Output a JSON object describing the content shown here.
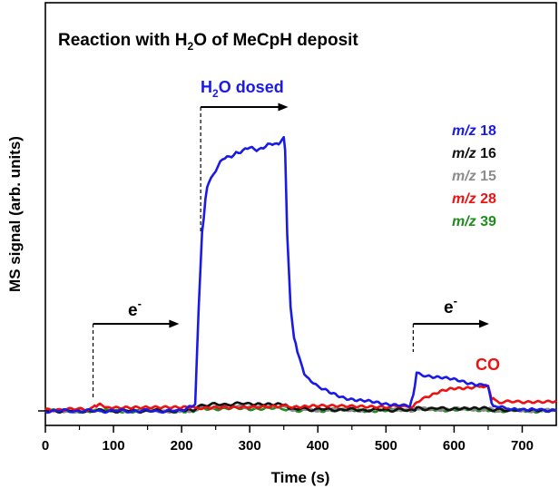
{
  "chart_data": {
    "type": "line",
    "title": "Reaction with H2O of MeCpH deposit",
    "xlabel": "Time (s)",
    "ylabel": "MS signal (arb. units)",
    "xlim": [
      0,
      750
    ],
    "ylim": [
      0,
      100
    ],
    "xticks": [
      0,
      100,
      200,
      300,
      400,
      500,
      600,
      700
    ],
    "grid": false,
    "legend_position": "right",
    "series": [
      {
        "name": "m/z 18",
        "prefix": "m/z",
        "num": "18",
        "color": "#1a1ae6",
        "x": [
          0,
          100,
          200,
          220,
          225,
          230,
          235,
          240,
          250,
          260,
          270,
          280,
          290,
          300,
          310,
          320,
          330,
          340,
          345,
          350,
          352,
          355,
          360,
          365,
          370,
          380,
          390,
          400,
          420,
          440,
          460,
          480,
          500,
          520,
          535,
          540,
          545,
          560,
          580,
          600,
          620,
          640,
          650,
          655,
          660,
          670,
          680,
          700,
          720,
          750
        ],
        "y": [
          0,
          0,
          0,
          2,
          35,
          60,
          72,
          78,
          82,
          85,
          86,
          88,
          88,
          89,
          89,
          89.5,
          90,
          90.5,
          91,
          93,
          88,
          60,
          35,
          25,
          20,
          13,
          10,
          8,
          6,
          4.5,
          3.5,
          3,
          2.5,
          2,
          2,
          5,
          13,
          12,
          11.5,
          10.5,
          9.5,
          9,
          8.5,
          2.5,
          1.5,
          1,
          0.8,
          0.6,
          0.4,
          0.3
        ]
      },
      {
        "name": "m/z 16",
        "prefix": "m/z",
        "num": "16",
        "color": "#111111",
        "x": [
          0,
          100,
          200,
          220,
          230,
          300,
          350,
          355,
          360,
          400,
          500,
          540,
          545,
          600,
          650,
          660,
          700,
          750
        ],
        "y": [
          0,
          0,
          0,
          0.5,
          2,
          2.5,
          2.5,
          1.5,
          0.8,
          0.5,
          0.3,
          0.4,
          0.8,
          0.8,
          0.8,
          0.3,
          0.2,
          0.1
        ]
      },
      {
        "name": "m/z 15",
        "prefix": "m/z",
        "num": "15",
        "color": "#8c8c8c",
        "x": [
          0,
          200,
          220,
          230,
          350,
          360,
          400,
          540,
          545,
          650,
          660,
          750
        ],
        "y": [
          0,
          0,
          0.3,
          1.5,
          1.5,
          0.6,
          0.3,
          0.3,
          0.6,
          0.6,
          0.2,
          0.1
        ]
      },
      {
        "name": "m/z 28",
        "prefix": "m/z",
        "num": "28",
        "color": "#ee1111",
        "x": [
          0,
          60,
          70,
          75,
          80,
          90,
          100,
          150,
          200,
          220,
          230,
          250,
          300,
          350,
          360,
          380,
          400,
          450,
          500,
          540,
          545,
          560,
          580,
          600,
          620,
          640,
          650,
          655,
          660,
          670,
          700,
          750
        ],
        "y": [
          0.5,
          0.5,
          1,
          2,
          2,
          1.5,
          1.2,
          1,
          1,
          1,
          1.2,
          1.3,
          1.5,
          1.6,
          1.6,
          1.5,
          1.5,
          1.5,
          1.5,
          1.6,
          3,
          5,
          6.5,
          7.5,
          8,
          8.5,
          8,
          4.5,
          3.5,
          3,
          3,
          3.5
        ]
      },
      {
        "name": "m/z 39",
        "prefix": "m/z",
        "num": "39",
        "color": "#1e8c1e",
        "x": [
          0,
          200,
          220,
          230,
          350,
          360,
          400,
          540,
          545,
          650,
          660,
          750
        ],
        "y": [
          0,
          0,
          0.2,
          0.8,
          0.8,
          0.3,
          0.2,
          0.2,
          0.4,
          0.4,
          0.1,
          0
        ]
      }
    ],
    "annotations": {
      "title_main": "Reaction with H",
      "title_sub": "2",
      "title_tail": "O of MeCpH deposit",
      "h2o_main": "H",
      "h2o_sub": "2",
      "h2o_tail": "O dosed",
      "electron_label": "e",
      "electron_sup": "-",
      "co_label": "CO"
    },
    "dose_windows": [
      {
        "start": 70,
        "end": 195,
        "label": "e-"
      },
      {
        "start": 228,
        "end": 355,
        "label": "H2O dosed"
      },
      {
        "start": 540,
        "end": 650,
        "label": "e-"
      }
    ]
  }
}
